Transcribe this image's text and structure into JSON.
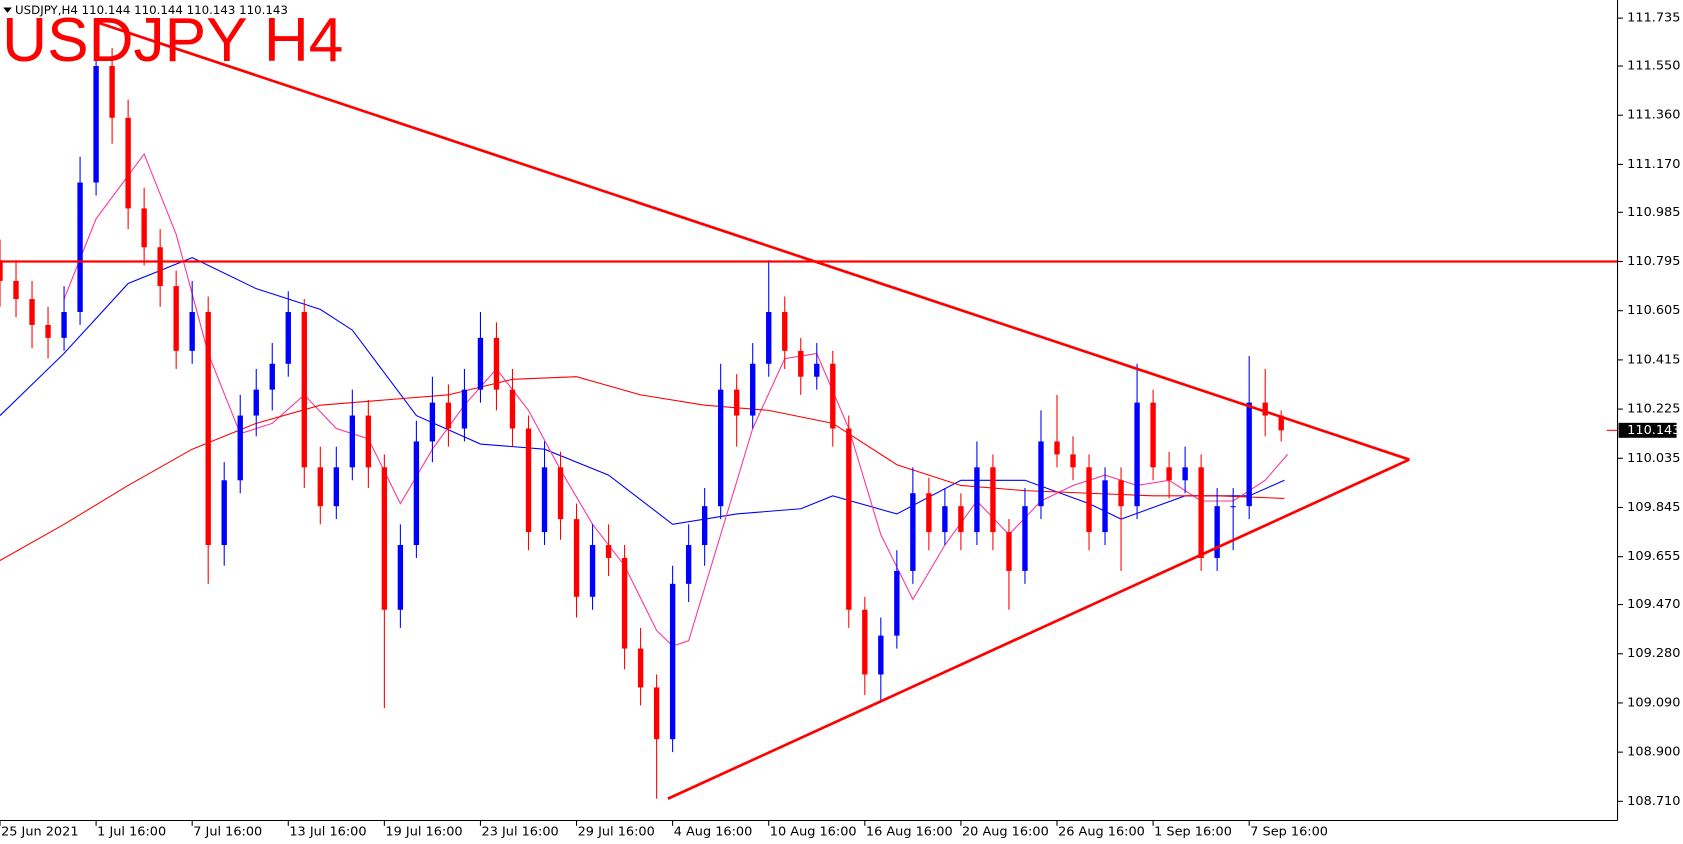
{
  "chart_data": {
    "type": "candlestick",
    "title": "USDJPY H4",
    "info_bar": "USDJPY,H4  110.144 110.144 110.143 110.143",
    "bid": 110.143,
    "bull_color": "#0000ff",
    "bear_color": "#ff0000",
    "xlim": [
      0,
      505
    ],
    "ylim": [
      108.636,
      111.805
    ],
    "xticks": [
      {
        "value": 0,
        "label": "25 Jun 2021"
      },
      {
        "value": 30,
        "label": "1 Jul 16:00"
      },
      {
        "value": 60,
        "label": "7 Jul 16:00"
      },
      {
        "value": 90,
        "label": "13 Jul 16:00"
      },
      {
        "value": 120,
        "label": "19 Jul 16:00"
      },
      {
        "value": 150,
        "label": "23 Jul 16:00"
      },
      {
        "value": 180,
        "label": "29 Jul 16:00"
      },
      {
        "value": 210,
        "label": "4 Aug 16:00"
      },
      {
        "value": 240,
        "label": "10 Aug 16:00"
      },
      {
        "value": 270,
        "label": "16 Aug 16:00"
      },
      {
        "value": 300,
        "label": "20 Aug 16:00"
      },
      {
        "value": 330,
        "label": "26 Aug 16:00"
      },
      {
        "value": 360,
        "label": "1 Sep 16:00"
      },
      {
        "value": 390,
        "label": "7 Sep 16:00"
      }
    ],
    "yticks": [
      111.735,
      {
        "value": 111.55,
        "label": "111.550"
      },
      {
        "value": 111.36,
        "label": "111.360"
      },
      {
        "value": 111.17,
        "label": "111.170"
      },
      110.985,
      110.795,
      110.605,
      110.415,
      110.225,
      110.035,
      109.845,
      109.655,
      {
        "value": 109.47,
        "label": "109.470"
      },
      {
        "value": 109.28,
        "label": "109.280"
      },
      {
        "value": 109.09,
        "label": "109.090"
      },
      {
        "value": 108.9,
        "label": "108.900"
      },
      {
        "value": 108.71,
        "label": "108.710"
      }
    ],
    "x": [
      0,
      5,
      10,
      15,
      20,
      25,
      30,
      35,
      40,
      45,
      50,
      55,
      60,
      65,
      70,
      75,
      80,
      85,
      90,
      95,
      100,
      105,
      110,
      115,
      120,
      125,
      130,
      135,
      140,
      145,
      150,
      155,
      160,
      165,
      170,
      175,
      180,
      185,
      190,
      195,
      200,
      205,
      210,
      215,
      220,
      225,
      230,
      235,
      240,
      245,
      250,
      255,
      260,
      265,
      270,
      275,
      280,
      285,
      290,
      295,
      300,
      305,
      310,
      315,
      320,
      325,
      330,
      335,
      340,
      345,
      350,
      355,
      360,
      365,
      370,
      375,
      380,
      385,
      390,
      395,
      400
    ],
    "ohlc": [
      [
        110.8,
        110.88,
        110.62,
        110.72
      ],
      [
        110.72,
        110.8,
        110.58,
        110.65
      ],
      [
        110.65,
        110.72,
        110.46,
        110.55
      ],
      [
        110.55,
        110.62,
        110.42,
        110.5
      ],
      [
        110.5,
        110.7,
        110.45,
        110.6
      ],
      [
        110.6,
        111.2,
        110.55,
        111.1
      ],
      [
        111.1,
        111.68,
        111.05,
        111.55
      ],
      [
        111.55,
        111.62,
        111.25,
        111.35
      ],
      [
        111.35,
        111.42,
        110.92,
        111.0
      ],
      [
        111.0,
        111.08,
        110.78,
        110.85
      ],
      [
        110.85,
        110.92,
        110.62,
        110.7
      ],
      [
        110.7,
        110.76,
        110.38,
        110.45
      ],
      [
        110.45,
        110.72,
        110.4,
        110.6
      ],
      [
        110.6,
        110.66,
        109.55,
        109.7
      ],
      [
        109.7,
        110.02,
        109.62,
        109.95
      ],
      [
        109.95,
        110.28,
        109.9,
        110.2
      ],
      [
        110.2,
        110.38,
        110.12,
        110.3
      ],
      [
        110.3,
        110.48,
        110.22,
        110.4
      ],
      [
        110.4,
        110.68,
        110.35,
        110.6
      ],
      [
        110.6,
        110.65,
        109.92,
        110.0
      ],
      [
        110.0,
        110.08,
        109.78,
        109.85
      ],
      [
        109.85,
        110.08,
        109.8,
        110.0
      ],
      [
        110.0,
        110.3,
        109.95,
        110.2
      ],
      [
        110.2,
        110.26,
        109.92,
        110.0
      ],
      [
        110.0,
        110.05,
        109.07,
        109.45
      ],
      [
        109.45,
        109.78,
        109.38,
        109.7
      ],
      [
        109.7,
        110.18,
        109.65,
        110.1
      ],
      [
        110.1,
        110.35,
        110.02,
        110.25
      ],
      [
        110.25,
        110.32,
        110.08,
        110.15
      ],
      [
        110.15,
        110.38,
        110.1,
        110.3
      ],
      [
        110.3,
        110.6,
        110.25,
        110.5
      ],
      [
        110.5,
        110.56,
        110.22,
        110.3
      ],
      [
        110.3,
        110.38,
        110.08,
        110.15
      ],
      [
        110.15,
        110.2,
        109.68,
        109.75
      ],
      [
        109.75,
        110.1,
        109.7,
        110.0
      ],
      [
        110.0,
        110.06,
        109.72,
        109.8
      ],
      [
        109.8,
        109.86,
        109.42,
        109.5
      ],
      [
        109.5,
        109.78,
        109.45,
        109.7
      ],
      [
        109.7,
        109.78,
        109.58,
        109.65
      ],
      [
        109.65,
        109.7,
        109.22,
        109.3
      ],
      [
        109.3,
        109.38,
        109.08,
        109.15
      ],
      [
        109.15,
        109.2,
        108.72,
        108.95
      ],
      [
        108.95,
        109.62,
        108.9,
        109.55
      ],
      [
        109.55,
        109.78,
        109.48,
        109.7
      ],
      [
        109.7,
        109.92,
        109.62,
        109.85
      ],
      [
        109.85,
        110.4,
        109.8,
        110.3
      ],
      [
        110.3,
        110.36,
        110.08,
        110.2
      ],
      [
        110.2,
        110.48,
        110.15,
        110.4
      ],
      [
        110.4,
        110.8,
        110.35,
        110.6
      ],
      [
        110.6,
        110.66,
        110.38,
        110.45
      ],
      [
        110.45,
        110.5,
        110.28,
        110.35
      ],
      [
        110.35,
        110.48,
        110.3,
        110.4
      ],
      [
        110.4,
        110.45,
        110.08,
        110.15
      ],
      [
        110.15,
        110.2,
        109.38,
        109.45
      ],
      [
        109.45,
        109.5,
        109.12,
        109.2
      ],
      [
        109.2,
        109.42,
        109.1,
        109.35
      ],
      [
        109.35,
        109.68,
        109.3,
        109.6
      ],
      [
        109.6,
        110.0,
        109.55,
        109.9
      ],
      [
        109.9,
        109.96,
        109.68,
        109.75
      ],
      [
        109.75,
        109.92,
        109.7,
        109.85
      ],
      [
        109.85,
        109.9,
        109.68,
        109.75
      ],
      [
        109.75,
        110.1,
        109.7,
        110.0
      ],
      [
        110.0,
        110.05,
        109.68,
        109.75
      ],
      [
        109.75,
        109.8,
        109.45,
        109.6
      ],
      [
        109.6,
        109.92,
        109.55,
        109.85
      ],
      [
        109.85,
        110.22,
        109.8,
        110.1
      ],
      [
        110.1,
        110.28,
        110.0,
        110.05
      ],
      [
        110.05,
        110.12,
        109.95,
        110.0
      ],
      [
        110.0,
        110.05,
        109.68,
        109.75
      ],
      [
        109.75,
        110.0,
        109.7,
        109.95
      ],
      [
        109.95,
        110.0,
        109.6,
        109.85
      ],
      [
        109.85,
        110.4,
        109.8,
        110.25
      ],
      [
        110.25,
        110.3,
        109.95,
        110.0
      ],
      [
        110.0,
        110.06,
        109.88,
        109.95
      ],
      [
        109.95,
        110.08,
        109.9,
        110.0
      ],
      [
        110.0,
        110.05,
        109.6,
        109.65
      ],
      [
        109.65,
        109.92,
        109.6,
        109.85
      ],
      [
        109.85,
        109.92,
        109.68,
        109.85
      ],
      [
        109.85,
        110.43,
        109.8,
        110.25
      ],
      [
        110.25,
        110.38,
        110.12,
        110.2
      ],
      [
        110.2,
        110.22,
        110.1,
        110.143
      ]
    ],
    "series": [
      {
        "color": "#0000ff",
        "x": [
          0,
          20,
          40,
          60,
          80,
          100,
          110,
          130,
          150,
          170,
          190,
          210,
          230,
          250,
          260,
          280,
          300,
          320,
          340,
          350,
          370,
          390,
          401
        ],
        "values": [
          110.2,
          110.44,
          110.71,
          110.81,
          110.69,
          110.61,
          110.53,
          110.2,
          110.09,
          110.07,
          109.97,
          109.78,
          109.82,
          109.84,
          109.89,
          109.82,
          109.95,
          109.95,
          109.86,
          109.8,
          109.89,
          109.89,
          109.95
        ]
      },
      {
        "color": "#ff3399",
        "x": [
          20,
          30,
          45,
          55,
          65,
          75,
          85,
          95,
          105,
          115,
          125,
          135,
          145,
          155,
          165,
          175,
          185,
          195,
          205,
          210,
          215,
          225,
          235,
          245,
          255,
          265,
          275,
          285,
          295,
          305,
          315,
          325,
          335,
          345,
          355,
          365,
          375,
          385,
          395,
          402
        ],
        "values": [
          110.65,
          110.96,
          111.21,
          110.9,
          110.44,
          110.13,
          110.17,
          110.28,
          110.15,
          110.11,
          109.86,
          110.07,
          110.24,
          110.38,
          110.22,
          109.99,
          109.78,
          109.62,
          109.37,
          109.31,
          109.33,
          109.74,
          110.15,
          110.42,
          110.44,
          110.15,
          109.74,
          109.49,
          109.7,
          109.87,
          109.74,
          109.87,
          109.93,
          109.97,
          109.93,
          109.95,
          109.87,
          109.87,
          109.95,
          110.05
        ]
      },
      {
        "color": "#ff0000",
        "x": [
          0,
          20,
          40,
          60,
          80,
          100,
          120,
          140,
          160,
          180,
          200,
          220,
          240,
          260,
          280,
          300,
          320,
          340,
          360,
          380,
          401
        ],
        "values": [
          109.64,
          109.78,
          109.93,
          110.07,
          110.17,
          110.24,
          110.26,
          110.28,
          110.34,
          110.35,
          110.28,
          110.24,
          110.22,
          110.17,
          110.01,
          109.93,
          109.91,
          109.9,
          109.89,
          109.89,
          109.88
        ]
      }
    ],
    "drawing_color": "#ff0000",
    "hline": 110.795,
    "trendlines": [
      {
        "x": [
          30,
          440
        ],
        "y": [
          111.72,
          110.03
        ]
      },
      {
        "x": [
          208.5,
          440
        ],
        "y": [
          108.72,
          110.03
        ]
      }
    ]
  }
}
